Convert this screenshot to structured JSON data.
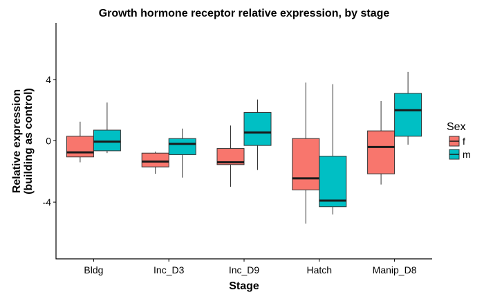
{
  "chart_data": {
    "type": "boxplot",
    "title": "Growth hormone receptor relative expression, by stage",
    "xlabel": "Stage",
    "ylabel_line1": "Relative expression",
    "ylabel_line2": "(building as control)",
    "categories": [
      "Bldg",
      "Inc_D3",
      "Inc_D9",
      "Hatch",
      "Manip_D8"
    ],
    "ylim": [
      -7.7,
      7.7
    ],
    "yticks": [
      -4,
      0,
      4
    ],
    "ytick_labels": [
      "-4",
      "0",
      "4"
    ],
    "grid": false,
    "legend": {
      "title": "Sex",
      "position": "right"
    },
    "series": [
      {
        "name": "f",
        "color": "#F8766D",
        "boxes": [
          {
            "min": -1.4,
            "q1": -1.05,
            "median": -0.75,
            "q3": 0.3,
            "max": 1.25
          },
          {
            "min": -2.15,
            "q1": -1.7,
            "median": -1.35,
            "q3": -0.8,
            "max": -0.7
          },
          {
            "min": -3.0,
            "q1": -1.55,
            "median": -1.4,
            "q3": -0.5,
            "max": 1.0
          },
          {
            "min": -5.4,
            "q1": -3.2,
            "median": -2.45,
            "q3": 0.15,
            "max": 3.8
          },
          {
            "min": -2.85,
            "q1": -2.15,
            "median": -0.4,
            "q3": 0.65,
            "max": 2.6
          }
        ]
      },
      {
        "name": "m",
        "color": "#00BFC4",
        "boxes": [
          {
            "min": -0.8,
            "q1": -0.65,
            "median": -0.05,
            "q3": 0.7,
            "max": 2.5
          },
          {
            "min": -2.4,
            "q1": -0.9,
            "median": -0.2,
            "q3": 0.15,
            "max": 0.8
          },
          {
            "min": -1.9,
            "q1": -0.3,
            "median": 0.55,
            "q3": 1.85,
            "max": 2.7
          },
          {
            "min": -4.8,
            "q1": -4.3,
            "median": -3.9,
            "q3": -1.0,
            "max": 3.7
          },
          {
            "min": -0.25,
            "q1": 0.3,
            "median": 2.0,
            "q3": 3.1,
            "max": 4.5
          }
        ]
      }
    ]
  }
}
